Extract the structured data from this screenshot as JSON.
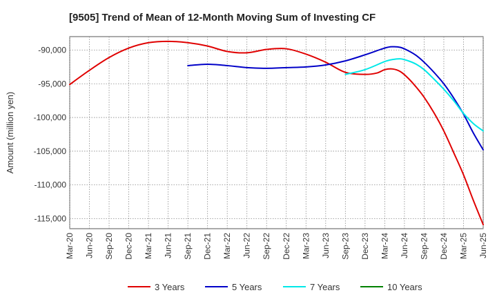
{
  "chart_data": {
    "type": "line",
    "title": "[9505]  Trend of Mean of 12-Month Moving Sum of Investing CF",
    "xlabel": "",
    "ylabel": "Amount (million yen)",
    "x_ticks": [
      "Mar-20",
      "Jun-20",
      "Sep-20",
      "Dec-20",
      "Mar-21",
      "Jun-21",
      "Sep-21",
      "Dec-21",
      "Mar-22",
      "Jun-22",
      "Sep-22",
      "Dec-22",
      "Mar-23",
      "Jun-23",
      "Sep-23",
      "Dec-23",
      "Mar-24",
      "Jun-24",
      "Sep-24",
      "Dec-24",
      "Mar-25",
      "Jun-25"
    ],
    "y_ticks": [
      -90000,
      -95000,
      -100000,
      -105000,
      -110000,
      -115000
    ],
    "y_tick_labels": [
      "-90,000",
      "-95,000",
      "-100,000",
      "-105,000",
      "-110,000",
      "-115,000"
    ],
    "ylim": [
      -116500,
      -88000
    ],
    "grid": true,
    "legend_position": "bottom",
    "series": [
      {
        "name": "3 Years",
        "color": "#e00000",
        "points": [
          [
            0,
            -95100
          ],
          [
            1,
            -93000
          ],
          [
            2,
            -91100
          ],
          [
            3,
            -89700
          ],
          [
            4,
            -88900
          ],
          [
            5,
            -88700
          ],
          [
            6,
            -88900
          ],
          [
            7,
            -89400
          ],
          [
            8,
            -90200
          ],
          [
            9,
            -90400
          ],
          [
            10,
            -89900
          ],
          [
            11,
            -89800
          ],
          [
            12,
            -90600
          ],
          [
            13,
            -91800
          ],
          [
            14,
            -93300
          ],
          [
            15,
            -93600
          ],
          [
            15.6,
            -93400
          ],
          [
            16,
            -92900
          ],
          [
            16.4,
            -92800
          ],
          [
            16.8,
            -93200
          ],
          [
            17.2,
            -94200
          ],
          [
            17.6,
            -95500
          ],
          [
            18,
            -97000
          ],
          [
            18.5,
            -99300
          ],
          [
            19,
            -102000
          ],
          [
            19.5,
            -105200
          ],
          [
            20,
            -108500
          ],
          [
            20.5,
            -112300
          ],
          [
            21,
            -115900
          ]
        ]
      },
      {
        "name": "5 Years",
        "color": "#0000c8",
        "points": [
          [
            6,
            -92300
          ],
          [
            7,
            -92100
          ],
          [
            8,
            -92300
          ],
          [
            9,
            -92600
          ],
          [
            10,
            -92700
          ],
          [
            11,
            -92600
          ],
          [
            12,
            -92500
          ],
          [
            13,
            -92200
          ],
          [
            14,
            -91600
          ],
          [
            15,
            -90700
          ],
          [
            16,
            -89700
          ],
          [
            16.4,
            -89500
          ],
          [
            16.8,
            -89600
          ],
          [
            17.2,
            -90100
          ],
          [
            17.6,
            -90800
          ],
          [
            18,
            -91800
          ],
          [
            18.5,
            -93300
          ],
          [
            19,
            -95000
          ],
          [
            19.5,
            -97100
          ],
          [
            20,
            -99500
          ],
          [
            20.5,
            -102300
          ],
          [
            21,
            -104800
          ]
        ]
      },
      {
        "name": "7 Years",
        "color": "#00e8e8",
        "points": [
          [
            14,
            -93600
          ],
          [
            15,
            -92900
          ],
          [
            16,
            -91700
          ],
          [
            16.4,
            -91400
          ],
          [
            16.8,
            -91300
          ],
          [
            17.2,
            -91600
          ],
          [
            17.6,
            -92100
          ],
          [
            18,
            -92900
          ],
          [
            18.5,
            -94300
          ],
          [
            19,
            -95800
          ],
          [
            19.5,
            -97500
          ],
          [
            20,
            -99400
          ],
          [
            20.5,
            -100900
          ],
          [
            21,
            -102000
          ]
        ]
      },
      {
        "name": "10 Years",
        "color": "#008000",
        "points": []
      }
    ]
  }
}
